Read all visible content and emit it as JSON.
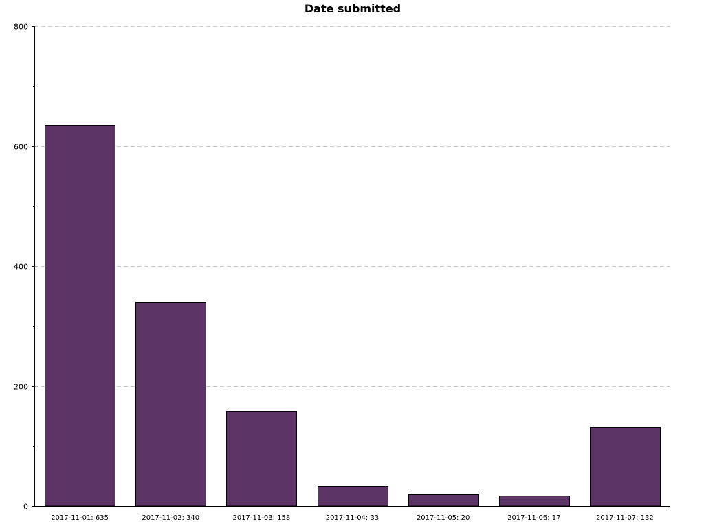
{
  "chart_data": {
    "type": "bar",
    "title": "Date submitted",
    "categories": [
      "2017-11-01",
      "2017-11-02",
      "2017-11-03",
      "2017-11-04",
      "2017-11-05",
      "2017-11-06",
      "2017-11-07"
    ],
    "values": [
      635,
      340,
      158,
      33,
      20,
      17,
      132
    ],
    "category_labels": [
      "2017-11-01: 635",
      "2017-11-02: 340",
      "2017-11-03: 158",
      "2017-11-04: 33",
      "2017-11-05: 20",
      "2017-11-06: 17",
      "2017-11-07: 132"
    ],
    "xlabel": "",
    "ylabel": "",
    "ylim": [
      0,
      800
    ],
    "y_major_ticks": [
      0,
      200,
      400,
      600,
      800
    ],
    "y_minor_ticks": [
      100,
      300,
      500,
      700
    ],
    "grid": true,
    "legend": "none",
    "bar_color": "#5c3566"
  }
}
